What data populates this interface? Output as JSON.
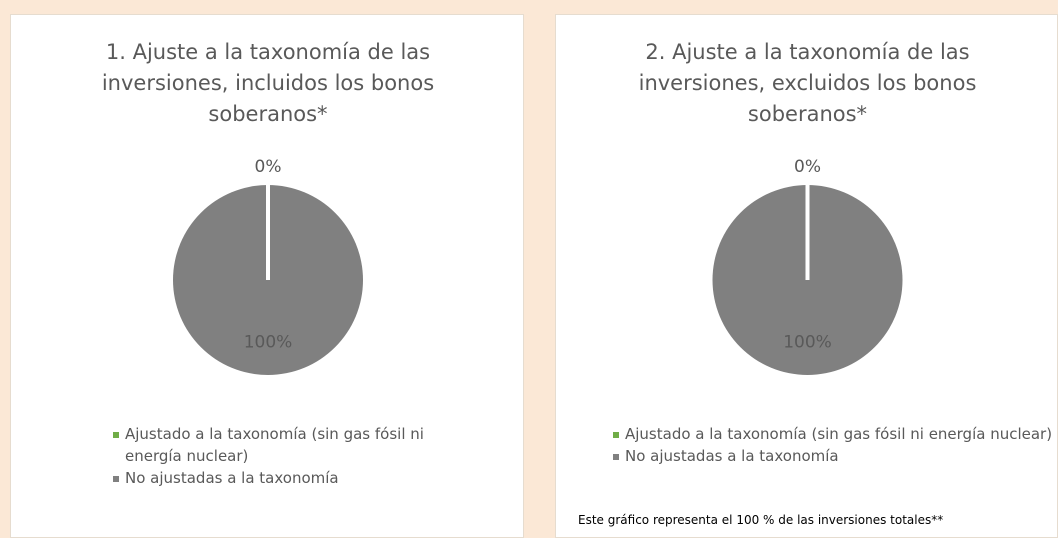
{
  "chart_data": [
    {
      "type": "pie",
      "title": "1. Ajuste a la taxonomía de las inversiones, incluidos los bonos soberanos*",
      "categories": [
        "Ajustado a la taxonomía (sin gas fósil ni energía nuclear)",
        "No ajustadas a la taxonomía"
      ],
      "values": [
        0,
        100
      ],
      "value_labels": [
        "0%",
        "100%"
      ],
      "colors": [
        "#70ad47",
        "#808080"
      ],
      "legend": "bottom"
    },
    {
      "type": "pie",
      "title": "2. Ajuste a la taxonomía de las inversiones, excluidos los bonos soberanos*",
      "categories": [
        "Ajustado a la taxonomía (sin gas fósil ni energía nuclear)",
        "No ajustadas a la taxonomía"
      ],
      "values": [
        0,
        100
      ],
      "value_labels": [
        "0%",
        "100%"
      ],
      "colors": [
        "#70ad47",
        "#808080"
      ],
      "legend": "bottom",
      "annotation": "Este gráfico representa el 100 % de las inversiones totales**"
    }
  ]
}
